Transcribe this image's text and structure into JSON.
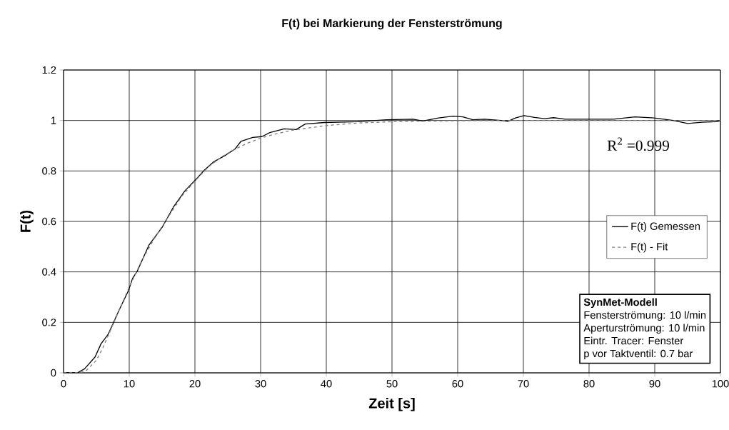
{
  "chart_data": {
    "type": "line",
    "title": "F(t) bei Markierung der Fensterströmung",
    "xlabel": "Zeit [s]",
    "ylabel": "F(t)",
    "xlim": [
      0,
      100
    ],
    "ylim": [
      0,
      1.2
    ],
    "xticks": [
      0,
      10,
      20,
      30,
      40,
      50,
      60,
      70,
      80,
      90,
      100
    ],
    "yticks": [
      0,
      0.2,
      0.4,
      0.6,
      0.8,
      1,
      1.2
    ],
    "grid": true,
    "legend": "right",
    "marker": "none",
    "annotations": [
      "R$^{2}$ =0.999",
      "SynMet-Modell",
      "Fensterströmung:  10 l/min",
      "Aperturströmung:  10 l/min",
      "Eintr. Tracer:  Fenster",
      "p vor Taktventil:  0.7 bar"
    ],
    "series": [
      {
        "name": "F(t) Gemessen",
        "color": "#000000",
        "line_style": "solid",
        "x": [
          0,
          2.1,
          3.2,
          4.8,
          5.7,
          6.8,
          8.5,
          9.9,
          10.5,
          11.2,
          13.0,
          15.0,
          16.7,
          18.5,
          20.1,
          21.4,
          22.8,
          24.7,
          26.1,
          27.0,
          28.8,
          30.2,
          31.4,
          33.6,
          35.4,
          36.8,
          39.7,
          44.8,
          49.2,
          53.2,
          54.7,
          57.1,
          59.3,
          60.8,
          62.3,
          64.1,
          66.6,
          67.7,
          68.8,
          70.1,
          71.7,
          73.2,
          74.6,
          76.4,
          80.8,
          83.7,
          87.0,
          89.9,
          92.8,
          95.0,
          97.2,
          99.3,
          100
        ],
        "values": [
          0,
          0,
          0.016,
          0.063,
          0.115,
          0.153,
          0.251,
          0.327,
          0.374,
          0.402,
          0.506,
          0.576,
          0.656,
          0.722,
          0.765,
          0.802,
          0.835,
          0.863,
          0.887,
          0.917,
          0.933,
          0.936,
          0.952,
          0.967,
          0.964,
          0.986,
          0.992,
          0.995,
          1.003,
          1.005,
          0.998,
          1.01,
          1.017,
          1.014,
          1.003,
          1.005,
          1.0,
          0.997,
          1.01,
          1.019,
          1.012,
          1.007,
          1.011,
          1.005,
          1.005,
          1.005,
          1.014,
          1.01,
          1.0,
          0.988,
          0.993,
          0.995,
          0.999
        ]
      },
      {
        "name": "F(t) - Fit",
        "color": "#808080",
        "line_style": "dashed",
        "x": [
          0,
          2.5,
          3.5,
          5,
          6,
          7,
          8,
          9,
          10,
          12,
          14,
          16,
          18,
          20,
          22,
          24,
          26,
          28,
          30,
          32,
          35,
          40,
          45,
          50,
          60,
          70,
          100
        ],
        "values": [
          0,
          0,
          0.01,
          0.05,
          0.1,
          0.16,
          0.22,
          0.28,
          0.34,
          0.45,
          0.54,
          0.62,
          0.7,
          0.76,
          0.815,
          0.855,
          0.885,
          0.91,
          0.93,
          0.945,
          0.962,
          0.98,
          0.99,
          0.995,
          0.999,
          1.0,
          1.0
        ]
      }
    ]
  }
}
